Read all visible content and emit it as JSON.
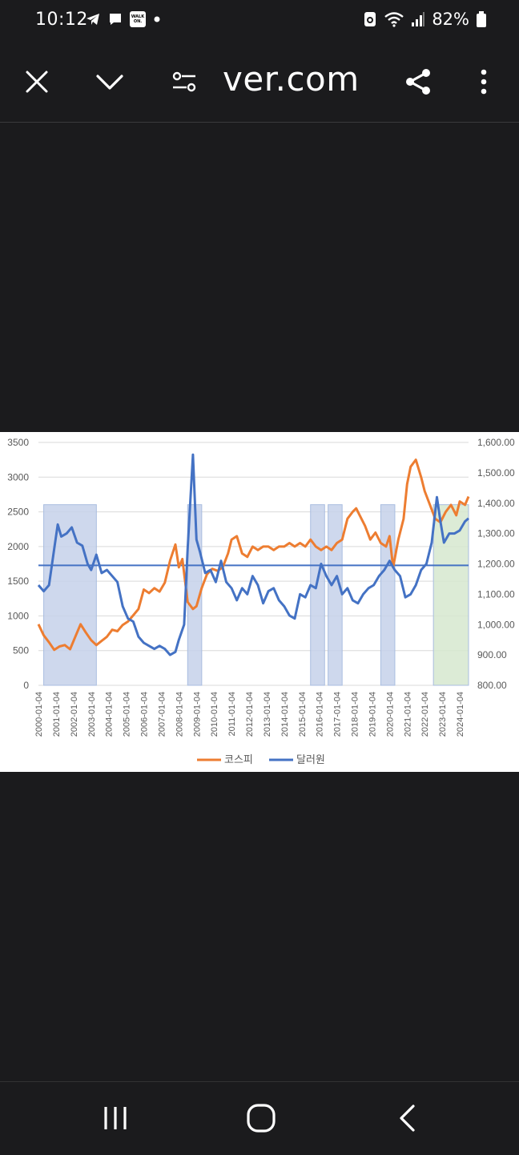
{
  "status": {
    "time": "10:12",
    "walk_badge": "WALK ON.",
    "battery": "82%"
  },
  "toolbar": {
    "url": "ver.com"
  },
  "chart_data": {
    "type": "line",
    "x_ticks": [
      "2000-01-04",
      "2001-01-04",
      "2002-01-04",
      "2003-01-04",
      "2004-01-04",
      "2005-01-04",
      "2006-01-04",
      "2007-01-04",
      "2008-01-04",
      "2009-01-04",
      "2010-01-04",
      "2011-01-04",
      "2012-01-04",
      "2013-01-04",
      "2014-01-04",
      "2015-01-04",
      "2016-01-04",
      "2017-01-04",
      "2018-01-04",
      "2019-01-04",
      "2020-01-04",
      "2021-01-04",
      "2022-01-04",
      "2023-01-04",
      "2024-01-04"
    ],
    "y_left": {
      "min": 0,
      "max": 3500,
      "ticks": [
        "0",
        "500",
        "1000",
        "1500",
        "2000",
        "2500",
        "3000",
        "3500"
      ]
    },
    "y_right": {
      "min": 800,
      "max": 1600,
      "ticks": [
        "800.00",
        "900.00",
        "1,000.00",
        "1,100.00",
        "1,200.00",
        "1,300.00",
        "1,400.00",
        "1,500.00",
        "1,600.00"
      ]
    },
    "reference_line": {
      "axis": "right",
      "value": 1195
    },
    "shaded_regions": [
      {
        "from": 2000.3,
        "to": 2003.3,
        "color": "#c5d1ea"
      },
      {
        "from": 2008.5,
        "to": 2009.3,
        "color": "#c5d1ea"
      },
      {
        "from": 2015.5,
        "to": 2016.3,
        "color": "#c5d1ea"
      },
      {
        "from": 2016.5,
        "to": 2017.3,
        "color": "#c5d1ea"
      },
      {
        "from": 2019.5,
        "to": 2020.3,
        "color": "#c5d1ea"
      },
      {
        "from": 2022.5,
        "to": 2024.5,
        "color": "#d6e7cf"
      }
    ],
    "series": [
      {
        "name": "코스피",
        "axis": "left",
        "color": "#ed7d31",
        "x": [
          2000.0,
          2000.3,
          2000.6,
          2000.9,
          2001.2,
          2001.5,
          2001.8,
          2002.1,
          2002.4,
          2002.7,
          2003.0,
          2003.3,
          2003.6,
          2003.9,
          2004.2,
          2004.5,
          2004.8,
          2005.1,
          2005.4,
          2005.7,
          2006.0,
          2006.3,
          2006.6,
          2006.9,
          2007.2,
          2007.5,
          2007.8,
          2008.0,
          2008.2,
          2008.5,
          2008.8,
          2009.0,
          2009.3,
          2009.6,
          2009.9,
          2010.2,
          2010.5,
          2010.8,
          2011.0,
          2011.3,
          2011.6,
          2011.9,
          2012.2,
          2012.5,
          2012.8,
          2013.1,
          2013.4,
          2013.7,
          2014.0,
          2014.3,
          2014.6,
          2014.9,
          2015.2,
          2015.5,
          2015.8,
          2016.1,
          2016.4,
          2016.7,
          2017.0,
          2017.3,
          2017.6,
          2017.9,
          2018.1,
          2018.3,
          2018.6,
          2018.9,
          2019.2,
          2019.5,
          2019.8,
          2020.0,
          2020.2,
          2020.5,
          2020.8,
          2021.0,
          2021.2,
          2021.5,
          2021.8,
          2022.0,
          2022.3,
          2022.6,
          2022.9,
          2023.2,
          2023.5,
          2023.8,
          2024.0,
          2024.3,
          2024.5
        ],
        "y": [
          880,
          720,
          620,
          510,
          560,
          580,
          520,
          700,
          880,
          760,
          650,
          580,
          640,
          700,
          800,
          780,
          870,
          920,
          1010,
          1100,
          1380,
          1330,
          1400,
          1350,
          1480,
          1800,
          2030,
          1700,
          1820,
          1200,
          1100,
          1140,
          1400,
          1600,
          1680,
          1650,
          1700,
          1900,
          2100,
          2150,
          1900,
          1850,
          2000,
          1950,
          2000,
          2000,
          1950,
          2000,
          2000,
          2050,
          2000,
          2050,
          2000,
          2100,
          2000,
          1950,
          2000,
          1950,
          2050,
          2100,
          2400,
          2500,
          2550,
          2450,
          2300,
          2100,
          2200,
          2050,
          2000,
          2150,
          1700,
          2100,
          2400,
          2900,
          3150,
          3250,
          3000,
          2800,
          2600,
          2400,
          2350,
          2500,
          2600,
          2450,
          2650,
          2600,
          2720
        ]
      },
      {
        "name": "달러원",
        "axis": "right",
        "color": "#4472c4",
        "x": [
          2000.0,
          2000.3,
          2000.6,
          2000.9,
          2001.1,
          2001.3,
          2001.6,
          2001.9,
          2002.2,
          2002.5,
          2002.8,
          2003.0,
          2003.3,
          2003.6,
          2003.9,
          2004.2,
          2004.5,
          2004.8,
          2005.1,
          2005.4,
          2005.7,
          2006.0,
          2006.3,
          2006.6,
          2006.9,
          2007.2,
          2007.5,
          2007.8,
          2008.0,
          2008.3,
          2008.5,
          2008.8,
          2009.0,
          2009.2,
          2009.5,
          2009.8,
          2010.1,
          2010.4,
          2010.7,
          2011.0,
          2011.3,
          2011.6,
          2011.9,
          2012.2,
          2012.5,
          2012.8,
          2013.1,
          2013.4,
          2013.7,
          2014.0,
          2014.3,
          2014.6,
          2014.9,
          2015.2,
          2015.5,
          2015.8,
          2016.1,
          2016.4,
          2016.7,
          2017.0,
          2017.3,
          2017.6,
          2017.9,
          2018.2,
          2018.5,
          2018.8,
          2019.1,
          2019.4,
          2019.7,
          2020.0,
          2020.3,
          2020.6,
          2020.9,
          2021.2,
          2021.5,
          2021.8,
          2022.1,
          2022.4,
          2022.7,
          2022.9,
          2023.1,
          2023.4,
          2023.7,
          2024.0,
          2024.3,
          2024.5
        ],
        "y": [
          1130,
          1110,
          1130,
          1250,
          1330,
          1290,
          1300,
          1320,
          1270,
          1260,
          1200,
          1180,
          1230,
          1170,
          1180,
          1160,
          1140,
          1060,
          1020,
          1010,
          960,
          940,
          930,
          920,
          930,
          920,
          900,
          910,
          950,
          1000,
          1250,
          1560,
          1280,
          1240,
          1170,
          1180,
          1140,
          1210,
          1140,
          1120,
          1080,
          1120,
          1100,
          1160,
          1130,
          1070,
          1110,
          1120,
          1080,
          1060,
          1030,
          1020,
          1100,
          1090,
          1130,
          1120,
          1200,
          1160,
          1130,
          1160,
          1100,
          1120,
          1080,
          1070,
          1100,
          1120,
          1130,
          1160,
          1180,
          1210,
          1180,
          1160,
          1090,
          1100,
          1130,
          1180,
          1200,
          1270,
          1420,
          1340,
          1270,
          1300,
          1300,
          1310,
          1340,
          1350
        ]
      }
    ],
    "legend": [
      "코스피",
      "달러원"
    ],
    "legend_position": "bottom"
  }
}
